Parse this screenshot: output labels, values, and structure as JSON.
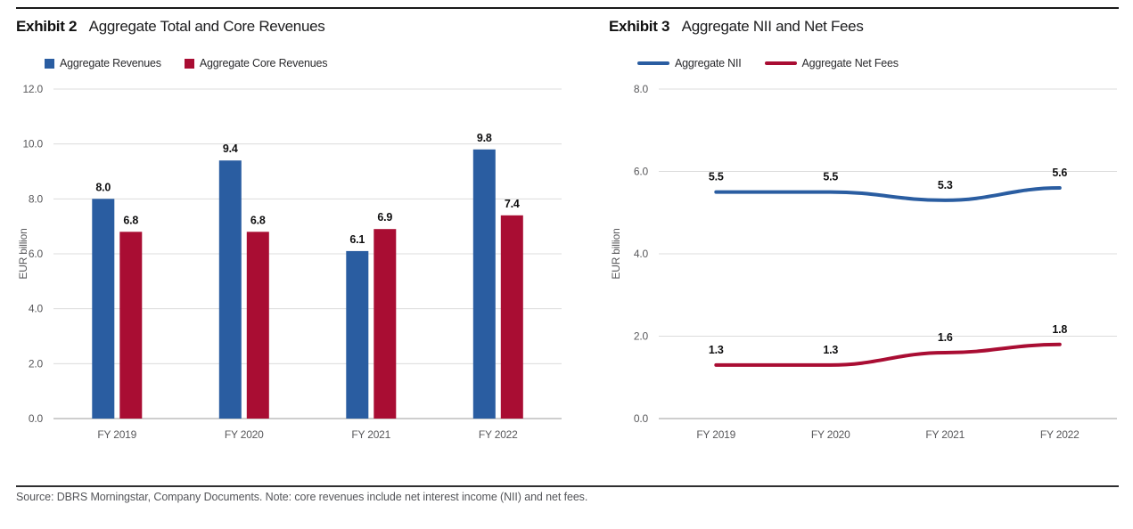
{
  "page": {
    "source_note": "Source: DBRS Morningstar, Company Documents. Note: core revenues include net interest income (NII) and net fees."
  },
  "exhibits": [
    {
      "label": "Exhibit 2",
      "title": "Aggregate Total and Core Revenues"
    },
    {
      "label": "Exhibit 3",
      "title": "Aggregate NII and Net Fees"
    }
  ],
  "chart_data": [
    {
      "type": "bar",
      "title": "Aggregate Total and Core Revenues",
      "categories": [
        "FY 2019",
        "FY 2020",
        "FY 2021",
        "FY 2022"
      ],
      "series": [
        {
          "name": "Aggregate Revenues",
          "color": "#2A5DA1",
          "values": [
            8.0,
            9.4,
            6.1,
            9.8
          ]
        },
        {
          "name": "Aggregate Core Revenues",
          "color": "#A90D33",
          "values": [
            6.8,
            6.8,
            6.9,
            7.4
          ]
        }
      ],
      "xlabel": "",
      "ylabel": "EUR billion",
      "ylim": [
        0,
        12
      ],
      "ytick_step": 2,
      "grid": true,
      "data_labels": true,
      "legend_position": "top-left"
    },
    {
      "type": "line",
      "title": "Aggregate NII and Net Fees",
      "categories": [
        "FY 2019",
        "FY 2020",
        "FY 2021",
        "FY 2022"
      ],
      "series": [
        {
          "name": "Aggregate NII",
          "color": "#2A5DA1",
          "values": [
            5.5,
            5.5,
            5.3,
            5.6
          ]
        },
        {
          "name": "Aggregate Net Fees",
          "color": "#A90D33",
          "values": [
            1.3,
            1.3,
            1.6,
            1.8
          ]
        }
      ],
      "xlabel": "",
      "ylabel": "EUR billion",
      "ylim": [
        0,
        8
      ],
      "ytick_step": 2,
      "grid": true,
      "data_labels": true,
      "legend_position": "top-left"
    }
  ],
  "colors": {
    "grid": "#DCDCDC",
    "axis": "#9E9E9E",
    "tick_label": "#58585B",
    "data_label": "#0F0F10",
    "rule_top": "#1A1A1A",
    "rule_bottom": "#2E2E30"
  }
}
